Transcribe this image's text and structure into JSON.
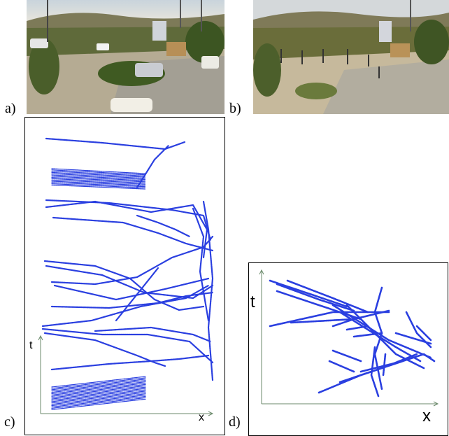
{
  "figure": {
    "panels": [
      {
        "id": "a",
        "label": "a)",
        "kind": "photo",
        "description": "traffic-scene-photo-cars"
      },
      {
        "id": "b",
        "label": "b)",
        "kind": "photo",
        "description": "traffic-scene-photo-pedestrians"
      },
      {
        "id": "c",
        "label": "c)",
        "kind": "trajectory-plot",
        "x_axis": "x",
        "y_axis": "t"
      },
      {
        "id": "d",
        "label": "d)",
        "kind": "trajectory-plot",
        "x_axis": "x",
        "y_axis": "t"
      }
    ],
    "colors": {
      "trajectory": "#2a3fe0",
      "axis": "#6b8a6b",
      "frame": "#000000"
    }
  }
}
